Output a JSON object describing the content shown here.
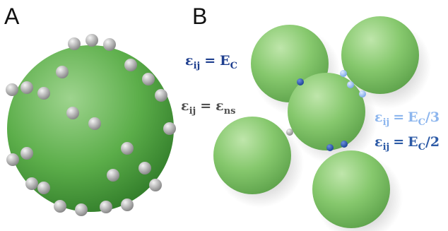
{
  "panels": [
    {
      "label": "A"
    },
    {
      "label": "B",
      "annotations": [
        {
          "lhs": "ε",
          "lhs_sub": "ij",
          "eq": "=",
          "rhs": "E",
          "rhs_sub": "C",
          "color": "#1f3f8f"
        },
        {
          "lhs": "ε",
          "lhs_sub": "ij",
          "eq": "=",
          "rhs": "ε",
          "rhs_sub": "ns",
          "color": "#505050"
        },
        {
          "lhs": "ε",
          "lhs_sub": "ij",
          "eq": "=",
          "rhs": "E",
          "rhs_sub": "C",
          "tail": "/3",
          "color": "#8db6ee"
        },
        {
          "lhs": "ε",
          "lhs_sub": "ij",
          "eq": "=",
          "rhs": "E",
          "rhs_sub": "C",
          "tail": "/2",
          "color": "#2c5aa6"
        }
      ]
    }
  ]
}
